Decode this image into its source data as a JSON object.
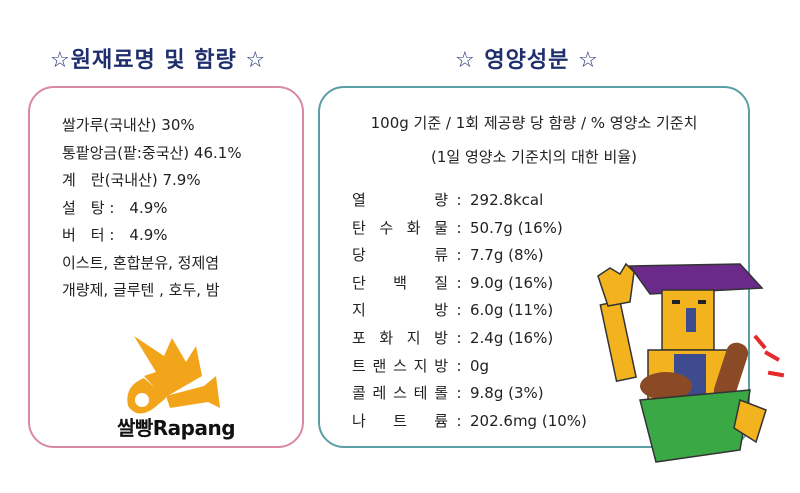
{
  "ingredients": {
    "title": "☆원재료명 및 함량 ☆",
    "items": [
      "쌀가루(국내산) 30%",
      "통팥앙금(팥:중국산) 46.1%",
      "계　란(국내산) 7.9%",
      "설　탕 :　4.9%",
      "버　터 :　4.9%",
      "이스트, 혼합분유, 정제염",
      "개량제, 글루텐 , 호두, 밤"
    ],
    "brand": "쌀빵Rapang"
  },
  "nutrition": {
    "title": "☆ 영양성분 ☆",
    "basis": "100g 기준 / 1회 제공량 당 함량 / % 영양소 기준치",
    "reference": "(1일 영양소 기준치의 대한 비율)",
    "rows": [
      {
        "name": "열량",
        "value": "292.8kcal"
      },
      {
        "name": "탄수화물",
        "value": "50.7g (16%)"
      },
      {
        "name": "당류",
        "value": "7.7g (8%)"
      },
      {
        "name": "단백질",
        "value": "9.0g (16%)"
      },
      {
        "name": "지방",
        "value": "6.0g (11%)"
      },
      {
        "name": "포화지방",
        "value": "2.4g (16%)"
      },
      {
        "name": "트랜스지방",
        "value": "0g"
      },
      {
        "name": "콜레스테롤",
        "value": "9.8g (3%)"
      },
      {
        "name": "나트륨",
        "value": "202.6mg (10%)"
      }
    ]
  },
  "colors": {
    "heading": "#1f2f6e",
    "ingredients_border": "#d98aa2",
    "nutrition_border": "#5c9ea5",
    "logo": "#f2a51a"
  }
}
